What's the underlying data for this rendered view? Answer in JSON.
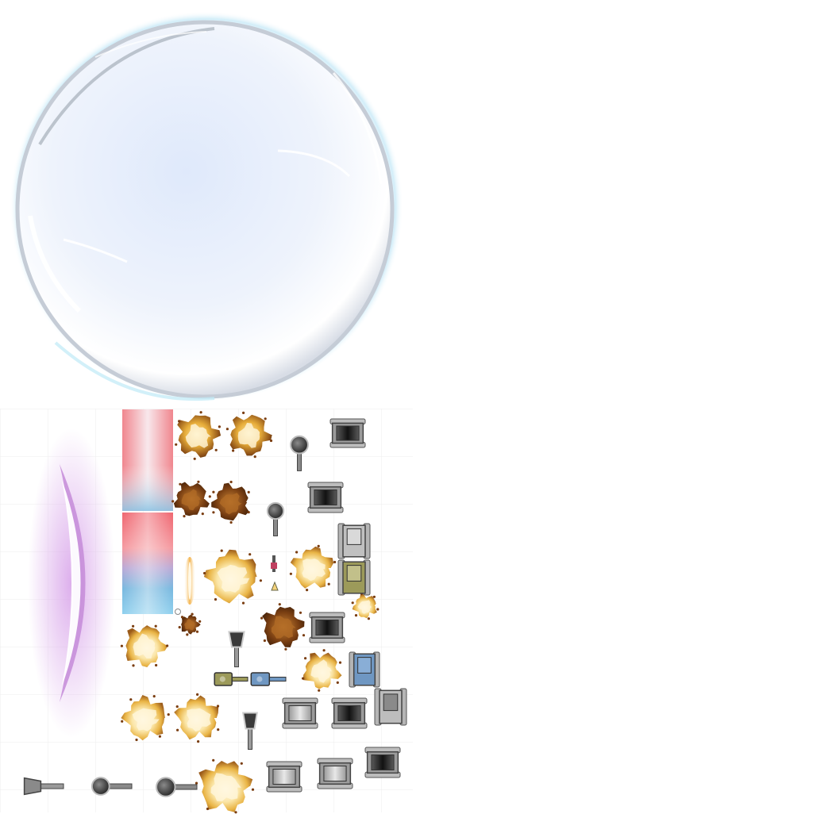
{
  "atlas": {
    "sprites": [
      {
        "id": "shield-bubble",
        "icon": "bubble-shield-icon"
      },
      {
        "id": "crescent-slash",
        "icon": "purple-crescent-glow-icon"
      },
      {
        "id": "gradient-strip-small",
        "icon": "red-blue-gradient-icon"
      },
      {
        "id": "gradient-strip-large",
        "icon": "red-blue-gradient-icon"
      },
      {
        "id": "muzzle-flash",
        "icon": "muzzle-flash-icon"
      },
      {
        "id": "explosions",
        "icon": "explosion-icon"
      },
      {
        "id": "turrets",
        "icon": "turret-icon"
      },
      {
        "id": "tank-hulls",
        "icon": "tank-hull-icon"
      }
    ],
    "colors": {
      "bubble_edge": "#c9d6e6",
      "bubble_fill": "#e6eefb",
      "crescent_glow": "#c58ad8",
      "gradient_red": "#ef6a76",
      "gradient_blue": "#6fb6de",
      "fire_core": "#fff6d8",
      "fire_mid": "#f2c14a",
      "fire_dark": "#8a4b16",
      "metal_light": "#c9c9c9",
      "metal_dark": "#3a3a3a",
      "camo_green": "#9c9a5a",
      "tank_blue": "#6f97c2"
    }
  }
}
